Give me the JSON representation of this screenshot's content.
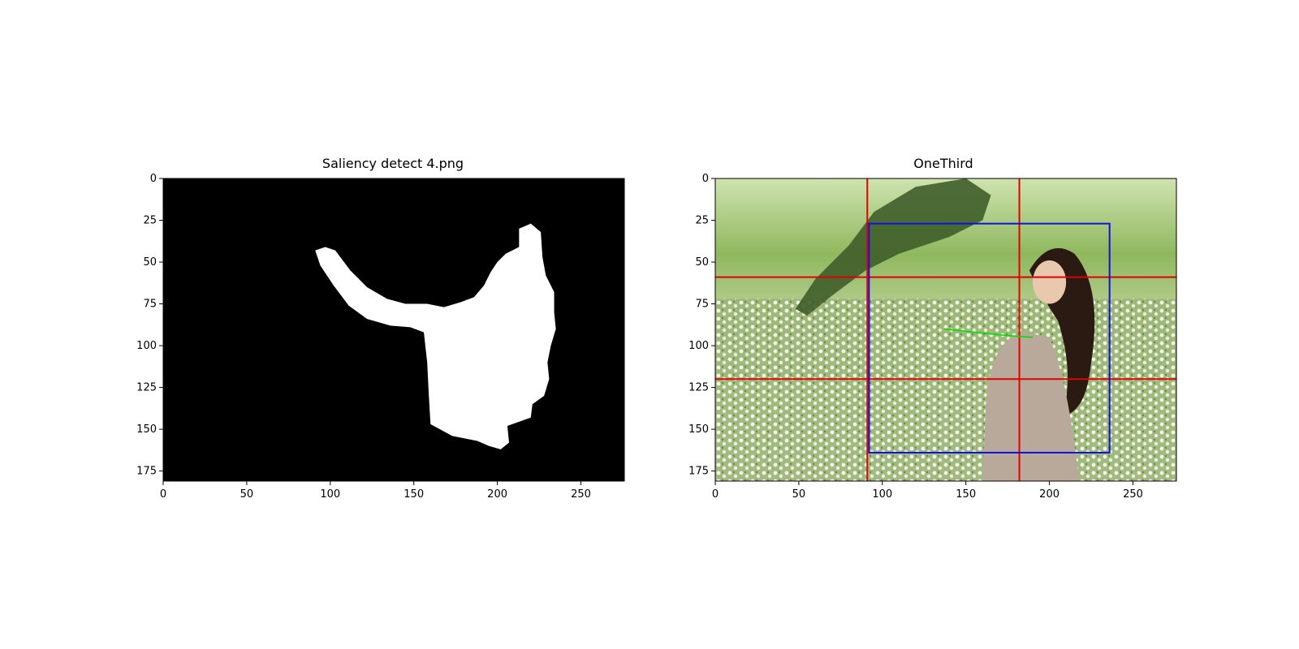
{
  "panels": [
    {
      "chart_data": {
        "type": "heatmap",
        "title": "Saliency detect 4.png",
        "xlim": [
          0,
          276
        ],
        "ylim": [
          181,
          0
        ],
        "xticks": [
          0,
          50,
          100,
          150,
          200,
          250
        ],
        "yticks": [
          0,
          25,
          50,
          75,
          100,
          125,
          150,
          175
        ],
        "background_color": "#000000",
        "mask_color": "#ffffff",
        "mask_outline": [
          [
            91,
            43
          ],
          [
            97,
            41
          ],
          [
            103,
            43
          ],
          [
            112,
            55
          ],
          [
            122,
            65
          ],
          [
            134,
            72
          ],
          [
            145,
            75
          ],
          [
            158,
            75
          ],
          [
            168,
            77
          ],
          [
            178,
            74
          ],
          [
            186,
            71
          ],
          [
            192,
            64
          ],
          [
            196,
            56
          ],
          [
            200,
            50
          ],
          [
            205,
            45
          ],
          [
            213,
            41
          ],
          [
            213,
            30
          ],
          [
            220,
            27
          ],
          [
            226,
            32
          ],
          [
            227,
            47
          ],
          [
            229,
            58
          ],
          [
            234,
            68
          ],
          [
            234,
            80
          ],
          [
            235,
            90
          ],
          [
            232,
            100
          ],
          [
            230,
            110
          ],
          [
            231,
            120
          ],
          [
            228,
            130
          ],
          [
            221,
            135
          ],
          [
            220,
            143
          ],
          [
            206,
            148
          ],
          [
            207,
            158
          ],
          [
            202,
            162
          ],
          [
            195,
            160
          ],
          [
            188,
            157
          ],
          [
            173,
            154
          ],
          [
            160,
            147
          ],
          [
            159,
            130
          ],
          [
            158,
            110
          ],
          [
            156,
            92
          ],
          [
            148,
            89
          ],
          [
            136,
            88
          ],
          [
            122,
            84
          ],
          [
            111,
            76
          ],
          [
            102,
            64
          ],
          [
            94,
            52
          ]
        ]
      }
    },
    {
      "chart_data": {
        "type": "heatmap",
        "title": "OneThird",
        "xlim": [
          0,
          276
        ],
        "ylim": [
          181,
          0
        ],
        "xticks": [
          0,
          50,
          100,
          150,
          200,
          250
        ],
        "yticks": [
          0,
          25,
          50,
          75,
          100,
          125,
          150,
          175
        ],
        "thirds_lines": {
          "color": "#e00000",
          "x": [
            91,
            182
          ],
          "y": [
            59,
            120
          ]
        },
        "bounding_box": {
          "color": "#1010e0",
          "x0": 92,
          "y0": 27,
          "x1": 236,
          "y1": 164
        },
        "direction_line": {
          "color": "#00e000",
          "points": [
            [
              137,
              90
            ],
            [
              155,
              92
            ],
            [
              175,
              94
            ],
            [
              190,
              95
            ]
          ]
        }
      }
    }
  ]
}
